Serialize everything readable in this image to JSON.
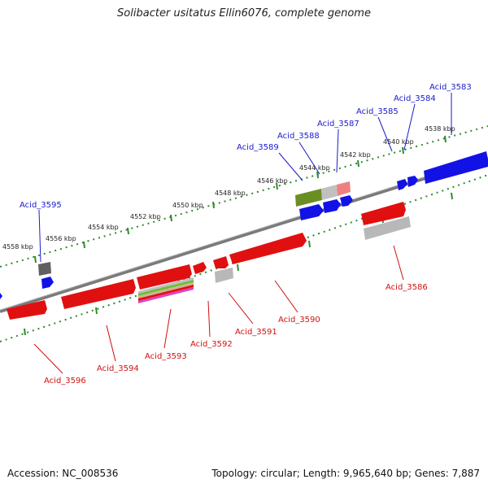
{
  "title": "Solibacter usitatus Ellin6076, complete genome",
  "footer": {
    "accession": "Accession: NC_008536",
    "summary": "Topology: circular; Length: 9,965,640 bp; Genes: 7,887"
  },
  "colors": {
    "forward_gene": "#1010e0",
    "reverse_gene": "#e01010",
    "pseudo_gene": "#a0a0a0",
    "rna_feature": "#6b8e23",
    "backbone": "#808080",
    "tick": "#228b22"
  },
  "kbp_ticks": [
    "4538 kbp",
    "4540 kbp",
    "4542 kbp",
    "4544 kbp",
    "4546 kbp",
    "4548 kbp",
    "4550 kbp",
    "4552 kbp",
    "4554 kbp",
    "4556 kbp",
    "4558 kbp"
  ],
  "forward_genes": [
    "Acid_3583",
    "Acid_3584",
    "Acid_3585",
    "Acid_3587",
    "Acid_3588",
    "Acid_3589",
    "Acid_3595"
  ],
  "reverse_genes": [
    "Acid_3586",
    "Acid_3590",
    "Acid_3591",
    "Acid_3592",
    "Acid_3593",
    "Acid_3594",
    "Acid_3596"
  ]
}
